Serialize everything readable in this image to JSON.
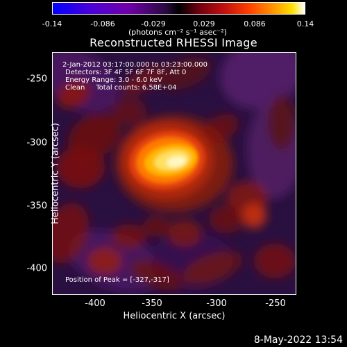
{
  "colorbar": {
    "ticks": [
      "-0.14",
      "-0.086",
      "-0.029",
      "0.029",
      "0.086",
      "0.14"
    ],
    "unit_label": "(photons cm⁻² s⁻¹ asec⁻²)"
  },
  "title": "Reconstructed RHESSI Image",
  "info": {
    "time": "2-Jan-2012 03:17:00.000 to 03:23:00.000",
    "detectors": "Detectors: 3F 4F 5F 6F 7F 8F, Att 0",
    "energy": "Energy Range: 3.0 - 6.0 keV",
    "method": "Clean     Total counts: 6.58E+04",
    "peak": "Position of Peak = [-327,-317]"
  },
  "axes": {
    "xlabel": "Heliocentric X (arcsec)",
    "ylabel": "Heliocentric Y (arcsec)",
    "xticks": [
      "-400",
      "-350",
      "-300",
      "-250"
    ],
    "yticks": [
      "-250",
      "-300",
      "-350",
      "-400"
    ]
  },
  "footer": {
    "date": "8-May-2022 13:54"
  }
}
